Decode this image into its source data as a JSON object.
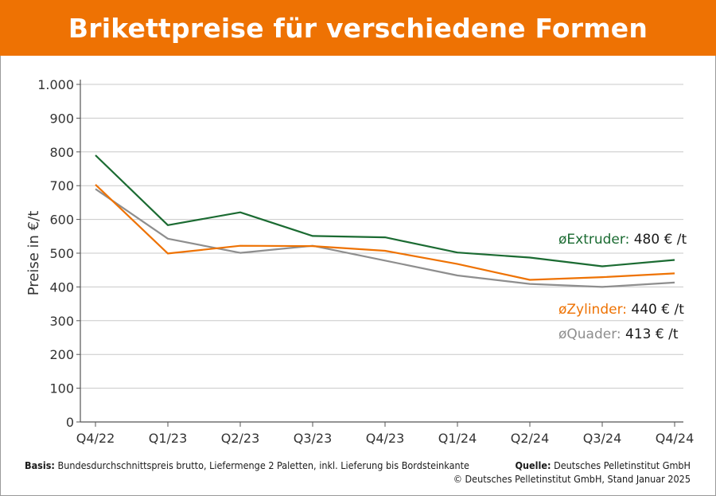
{
  "header": {
    "title": "Brikettpreise für verschiedene Formen"
  },
  "colors": {
    "banner": "#ee7203",
    "extruder": "#1b6b32",
    "zylinder": "#ee7203",
    "quader": "#8e8e8e",
    "grid": "#c8c8c8",
    "axis": "#555555"
  },
  "chart_data": {
    "type": "line",
    "title": "Brikettpreise für verschiedene Formen",
    "xlabel": "",
    "ylabel": "Preise in €/t",
    "ylim": [
      0,
      1000
    ],
    "yticks": [
      0,
      100,
      200,
      300,
      400,
      500,
      600,
      700,
      800,
      900,
      1000
    ],
    "ytick_labels": [
      "0",
      "100",
      "200",
      "300",
      "400",
      "500",
      "600",
      "700",
      "800",
      "900",
      "1.000"
    ],
    "categories": [
      "Q4/22",
      "Q1/23",
      "Q2/23",
      "Q3/23",
      "Q4/23",
      "Q1/24",
      "Q2/24",
      "Q3/24",
      "Q4/24"
    ],
    "grid": true,
    "series": [
      {
        "key": "extruder",
        "name": "Extruder:",
        "symbol": "ø",
        "value_label": "480 € /t",
        "values": [
          790,
          583,
          621,
          551,
          547,
          502,
          487,
          461,
          480
        ]
      },
      {
        "key": "zylinder",
        "name": "Zylinder:",
        "symbol": "ø",
        "value_label": "440 € /t",
        "values": [
          703,
          499,
          522,
          521,
          507,
          468,
          421,
          429,
          440
        ]
      },
      {
        "key": "quader",
        "name": "Quader:",
        "symbol": "ø",
        "value_label": "413 € /t",
        "values": [
          690,
          543,
          501,
          522,
          478,
          434,
          409,
          400,
          413
        ]
      }
    ]
  },
  "footer": {
    "basis_label": "Basis:",
    "basis_text": "Bundesdurchschnittspreis brutto, Liefermenge 2 Paletten, inkl. Lieferung bis Bordsteinkante",
    "source_label": "Quelle:",
    "source_text": "Deutsches Pelletinstitut GmbH",
    "copyright": "© Deutsches Pelletinstitut GmbH, Stand Januar 2025"
  }
}
